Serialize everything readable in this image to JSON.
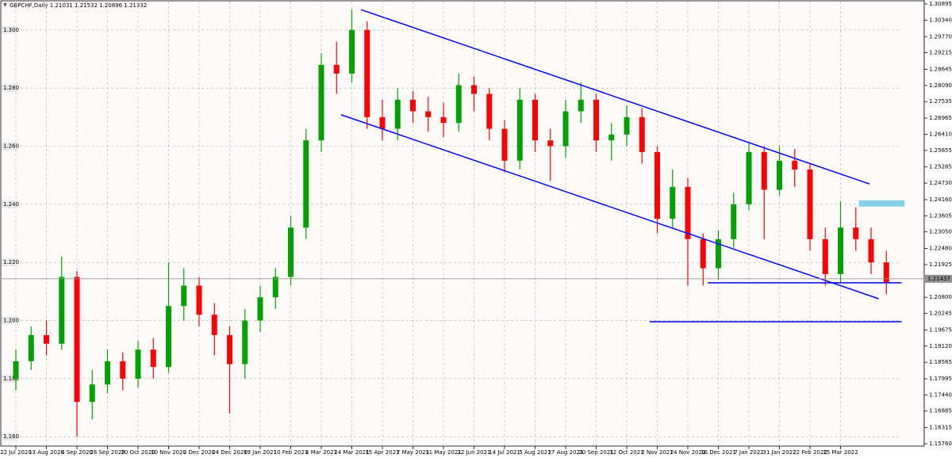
{
  "chart_data": {
    "type": "candlestick",
    "title": "GBPCHF,Daily  1.21031 1.21532 1.20896 1.21332",
    "categories": [
      "22 Jul 2020",
      null,
      "13 Aug 2020",
      null,
      "4 Sep 2020",
      null,
      "28 Sep 2020",
      null,
      "20 Oct 2020",
      null,
      "10 Nov 2020",
      null,
      "2 Dec 2020",
      null,
      "24 Dec 2020",
      null,
      "19 Jan 2021",
      null,
      "10 Feb 2021",
      null,
      "4 Mar 2021",
      null,
      "24 Mar 2021",
      null,
      "15 Apr 2021",
      null,
      "7 May 2021",
      null,
      "31 May 2021",
      null,
      "22 Jun 2021",
      null,
      "14 Jul 2021",
      null,
      "5 Aug 2021",
      null,
      "27 Aug 2021",
      null,
      "20 Sep 2021",
      null,
      "12 Oct 2021",
      null,
      "2 Nov 2021",
      null,
      "24 Nov 2021",
      null,
      "16 Dec 2021",
      null,
      "7 Jan 2022",
      null,
      "31 Jan 2022",
      null,
      "22 Feb 2022",
      null,
      "15 Mar 2022",
      null,
      null,
      null
    ],
    "open": [
      1.18,
      1.186,
      1.195,
      1.192,
      1.215,
      1.172,
      1.178,
      1.186,
      1.18,
      1.19,
      1.184,
      1.205,
      1.212,
      1.202,
      1.195,
      1.185,
      1.2,
      1.208,
      1.215,
      1.232,
      1.262,
      1.288,
      1.285,
      1.3,
      1.27,
      1.266,
      1.276,
      1.272,
      1.27,
      1.268,
      1.281,
      1.278,
      1.266,
      1.255,
      1.276,
      1.262,
      1.26,
      1.272,
      1.276,
      1.262,
      1.264,
      1.27,
      1.258,
      1.235,
      1.246,
      1.228,
      1.218,
      1.228,
      1.24,
      1.258,
      1.245,
      1.255,
      1.252,
      1.228,
      1.216,
      1.232,
      1.228,
      1.22
    ],
    "high": [
      1.19,
      1.198,
      1.2,
      1.222,
      1.217,
      1.183,
      1.19,
      1.189,
      1.193,
      1.194,
      1.22,
      1.218,
      1.215,
      1.206,
      1.198,
      1.204,
      1.212,
      1.218,
      1.236,
      1.266,
      1.292,
      1.296,
      1.307,
      1.303,
      1.276,
      1.28,
      1.279,
      1.277,
      1.275,
      1.285,
      1.284,
      1.28,
      1.269,
      1.28,
      1.278,
      1.266,
      1.276,
      1.282,
      1.278,
      1.268,
      1.274,
      1.273,
      1.26,
      1.252,
      1.249,
      1.23,
      1.231,
      1.244,
      1.261,
      1.26,
      1.26,
      1.259,
      1.254,
      1.232,
      1.241,
      1.239,
      1.232,
      1.224
    ],
    "low": [
      1.176,
      1.183,
      1.188,
      1.19,
      1.16,
      1.166,
      1.175,
      1.176,
      1.177,
      1.18,
      1.182,
      1.2,
      1.198,
      1.188,
      1.168,
      1.18,
      1.196,
      1.204,
      1.212,
      1.228,
      1.258,
      1.278,
      1.282,
      1.266,
      1.262,
      1.262,
      1.268,
      1.265,
      1.263,
      1.265,
      1.272,
      1.262,
      1.251,
      1.252,
      1.258,
      1.248,
      1.256,
      1.268,
      1.258,
      1.255,
      1.26,
      1.254,
      1.23,
      1.232,
      1.212,
      1.212,
      1.214,
      1.225,
      1.238,
      1.228,
      1.243,
      1.246,
      1.224,
      1.212,
      1.213,
      1.224,
      1.216,
      1.209
    ],
    "close": [
      1.186,
      1.195,
      1.192,
      1.215,
      1.172,
      1.178,
      1.186,
      1.18,
      1.19,
      1.184,
      1.205,
      1.212,
      1.202,
      1.195,
      1.185,
      1.2,
      1.208,
      1.215,
      1.232,
      1.262,
      1.288,
      1.285,
      1.3,
      1.27,
      1.266,
      1.276,
      1.272,
      1.27,
      1.268,
      1.281,
      1.278,
      1.266,
      1.255,
      1.276,
      1.262,
      1.26,
      1.272,
      1.276,
      1.262,
      1.264,
      1.27,
      1.258,
      1.235,
      1.246,
      1.228,
      1.218,
      1.228,
      1.24,
      1.258,
      1.245,
      1.255,
      1.252,
      1.228,
      1.216,
      1.232,
      1.228,
      1.22,
      1.213
    ],
    "up_color": "#00a000",
    "down_color": "#ff0000",
    "ylim": [
      1.1576,
      1.30895
    ],
    "yticks": [
      1.30895,
      {
        "value": 1.3034,
        "label": "1.30340"
      },
      {
        "value": 1.2977,
        "label": "1.29770"
      },
      1.29215,
      1.28645,
      {
        "value": 1.2809,
        "label": "1.28090"
      },
      1.27535,
      1.26965,
      {
        "value": 1.2641,
        "label": "1.26410"
      },
      1.25855,
      1.25285,
      {
        "value": 1.2473,
        "label": "1.24730"
      },
      {
        "value": 1.2416,
        "label": "1.24160"
      },
      1.23605,
      {
        "value": 1.2305,
        "label": "1.23050"
      },
      {
        "value": 1.2248,
        "label": "1.22480"
      },
      1.21925,
      {
        "value": 1.208,
        "label": "1.20800"
      },
      1.20245,
      1.19675,
      {
        "value": 1.1912,
        "label": "1.19120"
      },
      1.18565,
      1.17995,
      {
        "value": 1.1744,
        "label": "1.17440"
      },
      1.16885,
      1.16315,
      {
        "value": 1.1576,
        "label": "1.15760"
      }
    ],
    "y2lim": [
      1.1576,
      1.30895
    ],
    "y2ticks": [
      {
        "value": 1.3,
        "label": "1.300"
      },
      {
        "value": 1.28,
        "label": "1.280"
      },
      {
        "value": 1.26,
        "label": "1.260"
      },
      {
        "value": 1.24,
        "label": "1.240"
      },
      {
        "value": 1.22,
        "label": "1.220"
      },
      {
        "value": 1.2,
        "label": "1.200"
      },
      {
        "value": 1.18,
        "label": "1.180"
      },
      {
        "value": 1.16,
        "label": "1.160"
      }
    ],
    "grid": true,
    "current_price": 1.21437,
    "trendlines": [
      {
        "x": [
          22.6,
          55.9
        ],
        "y": [
          1.307,
          1.247
        ],
        "color": "#0000ff"
      },
      {
        "x": [
          21.3,
          56.5
        ],
        "y": [
          1.2708,
          1.2075
        ],
        "color": "#0000ff"
      },
      {
        "x": [
          45.3,
          58.0
        ],
        "y": [
          1.213,
          1.213
        ],
        "color": "#0000ff"
      },
      {
        "x": [
          41.5,
          58.0
        ],
        "y": [
          1.1996,
          1.1996
        ],
        "color": "#0000ff"
      }
    ],
    "zones": [
      {
        "x": [
          55.2,
          58.2
        ],
        "y": [
          1.2392,
          1.2414
        ],
        "color": "#87ceeb"
      }
    ]
  }
}
